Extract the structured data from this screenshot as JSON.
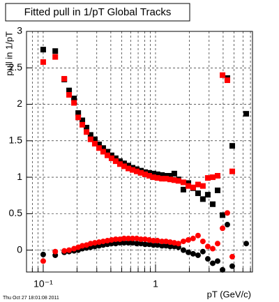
{
  "chart_data": {
    "type": "scatter",
    "title": "Fitted pull in 1/pT  Global Tracks",
    "x_label": "pT (GeV/c)",
    "y_label": "pull in 1/pT",
    "timestamp": "Thu Oct 27 18:01:08 2011",
    "xlog": true,
    "grid": true,
    "xlim": [
      0.071,
      7.3
    ],
    "ylim": [
      -0.3,
      3
    ],
    "xticks": [
      {
        "value": 0.1,
        "label": "10⁻¹"
      },
      1
    ],
    "yticks": [
      0,
      0.5,
      1,
      1.5,
      2,
      2.5,
      3
    ],
    "x": [
      0.1,
      0.128,
      0.154,
      0.17,
      0.188,
      0.205,
      0.223,
      0.243,
      0.264,
      0.288,
      0.314,
      0.342,
      0.373,
      0.406,
      0.442,
      0.482,
      0.525,
      0.573,
      0.624,
      0.68,
      0.741,
      0.807,
      0.879,
      0.958,
      1.04,
      1.14,
      1.24,
      1.35,
      1.47,
      1.6,
      1.77,
      1.96,
      2.16,
      2.39,
      2.64,
      2.92,
      3.23,
      3.57,
      3.95,
      4.36,
      4.82,
      5.33,
      6.42
    ],
    "series": [
      {
        "color": "#000000",
        "marker": "square",
        "values": [
          2.75,
          2.73,
          2.34,
          2.19,
          2.08,
          1.88,
          1.78,
          1.68,
          1.58,
          1.52,
          1.45,
          1.4,
          1.35,
          1.3,
          1.26,
          1.22,
          1.19,
          1.16,
          1.13,
          1.11,
          1.09,
          1.07,
          1.06,
          1.05,
          1.04,
          1.03,
          1.02,
          1.02,
          1.05,
          0.97,
          0.83,
          0.92,
          0.85,
          0.78,
          0.7,
          0.76,
          0.63,
          0.82,
          0.48,
          2.36,
          1.43,
          null,
          1.87
        ]
      },
      {
        "color": "#ff0000",
        "marker": "square",
        "values": [
          2.58,
          2.65,
          2.35,
          2.13,
          2.02,
          1.82,
          1.72,
          1.62,
          1.52,
          1.46,
          1.4,
          1.35,
          1.3,
          1.26,
          1.22,
          1.18,
          1.15,
          1.12,
          1.1,
          1.08,
          1.06,
          1.04,
          1.02,
          1.0,
          0.99,
          0.98,
          0.98,
          0.97,
          0.96,
          0.95,
          0.93,
          0.88,
          0.86,
          0.9,
          0.88,
          0.99,
          1.0,
          1.02,
          2.4,
          2.33,
          1.08,
          null,
          null
        ]
      },
      {
        "color": "#000000",
        "marker": "circle",
        "values": [
          -0.06,
          -0.07,
          -0.03,
          -0.02,
          -0.01,
          0.0,
          0.02,
          0.03,
          0.04,
          0.05,
          0.06,
          0.07,
          0.08,
          0.09,
          0.09,
          0.1,
          0.1,
          0.1,
          0.1,
          0.09,
          0.09,
          0.08,
          0.08,
          0.07,
          0.07,
          0.06,
          0.06,
          0.05,
          0.05,
          0.04,
          0.0,
          -0.03,
          -0.05,
          -0.07,
          -0.02,
          -0.12,
          -0.18,
          -0.15,
          -0.27,
          0.35,
          -0.22,
          null,
          0.09
        ]
      },
      {
        "color": "#ff0000",
        "marker": "circle",
        "values": [
          -0.15,
          -0.02,
          -0.01,
          0.0,
          0.02,
          0.04,
          0.06,
          0.07,
          0.09,
          0.1,
          0.11,
          0.12,
          0.13,
          0.14,
          0.15,
          0.15,
          0.16,
          0.16,
          0.16,
          0.16,
          0.15,
          0.15,
          0.14,
          0.13,
          0.13,
          0.12,
          0.12,
          0.11,
          0.1,
          0.09,
          0.12,
          0.14,
          0.16,
          0.2,
          0.12,
          0.05,
          0.02,
          0.09,
          0.3,
          0.51,
          -0.09,
          null,
          null
        ]
      }
    ]
  }
}
